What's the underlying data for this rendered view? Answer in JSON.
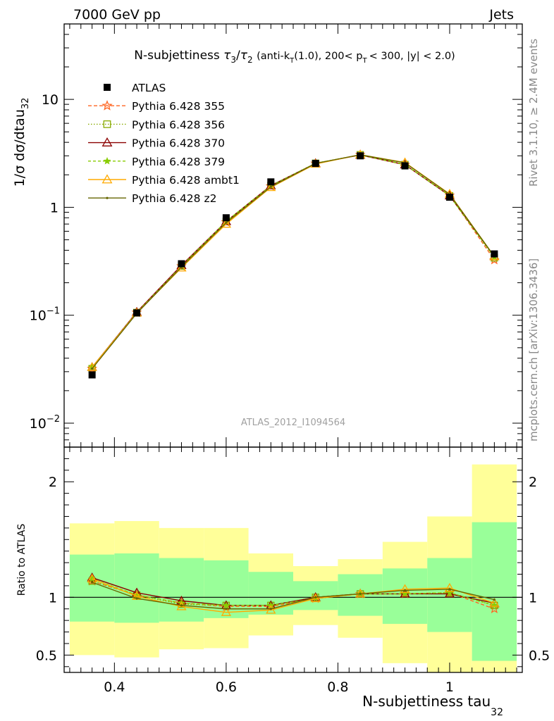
{
  "header": {
    "left": "7000 GeV pp",
    "right": "Jets"
  },
  "side_labels": {
    "rivet": "Rivet 3.1.10, ≥ 2.4M events",
    "mcplots": "mcplots.cern.ch [arXiv:1306.3436]"
  },
  "watermark": "ATLAS_2012_I1094564",
  "colors": {
    "band_outer": "#ffff99",
    "band_inner": "#99ff99",
    "data": "#000000"
  },
  "chart_data": [
    {
      "type": "line",
      "panel": "main",
      "title_parts": {
        "main": "N-subjettiness",
        "t3": "τ",
        "s3": "3",
        "slash": "/",
        "t2": "τ",
        "s2": "2",
        "open": "(anti-k",
        "kT_sub": "T",
        "mid": "(1.0), 200< p",
        "pT_sub": "T",
        "tail": "< 300, |y| < 2.0)"
      },
      "ylabel": "1/σ dσ/dtau",
      "ylabel_sub": "32",
      "y_scale": "log",
      "ylim": [
        0.006,
        50
      ],
      "xlim": [
        0.31,
        1.13
      ],
      "y_ticks": [
        {
          "value": 0.01,
          "base": "10",
          "exp": "−2"
        },
        {
          "value": 0.1,
          "base": "10",
          "exp": "−1"
        },
        {
          "value": 1,
          "base": "1",
          "exp": ""
        },
        {
          "value": 10,
          "base": "10",
          "exp": ""
        }
      ],
      "x": [
        0.36,
        0.44,
        0.52,
        0.6,
        0.68,
        0.76,
        0.84,
        0.92,
        1.0,
        1.08
      ],
      "data": {
        "name": "ATLAS",
        "values": [
          0.028,
          0.105,
          0.3,
          0.8,
          1.72,
          2.55,
          3.0,
          2.42,
          1.24,
          0.37
        ]
      },
      "series": [
        {
          "name": "Pythia 6.428 355",
          "color": "#ff6622",
          "dash": "5,3",
          "marker": "star_open",
          "values": [
            0.032,
            0.106,
            0.285,
            0.73,
            1.57,
            2.55,
            3.07,
            2.48,
            1.29,
            0.325
          ]
        },
        {
          "name": "Pythia 6.428 356",
          "color": "#88aa00",
          "dash": "1.5,2.5",
          "marker": "square_open",
          "values": [
            0.032,
            0.106,
            0.285,
            0.74,
            1.59,
            2.56,
            3.07,
            2.49,
            1.28,
            0.34
          ]
        },
        {
          "name": "Pythia 6.428 370",
          "color": "#8b0000",
          "dash": "",
          "marker": "triangle_open",
          "values": [
            0.033,
            0.107,
            0.29,
            0.74,
            1.59,
            2.55,
            3.05,
            2.48,
            1.28,
            0.35
          ]
        },
        {
          "name": "Pythia 6.428 379",
          "color": "#88cc00",
          "dash": "4,3",
          "marker": "star_filled",
          "values": [
            0.033,
            0.106,
            0.285,
            0.74,
            1.58,
            2.56,
            3.06,
            2.49,
            1.28,
            0.345
          ]
        },
        {
          "name": "Pythia 6.428 ambt1",
          "color": "#ffaa00",
          "dash": "",
          "marker": "triangle_open",
          "values": [
            0.033,
            0.105,
            0.275,
            0.7,
            1.53,
            2.52,
            3.07,
            2.6,
            1.33,
            0.35
          ]
        },
        {
          "name": "Pythia 6.428 z2",
          "color": "#666600",
          "dash": "",
          "marker": "dot",
          "values": [
            0.032,
            0.104,
            0.28,
            0.72,
            1.55,
            2.55,
            3.07,
            2.58,
            1.32,
            0.35
          ]
        }
      ]
    },
    {
      "type": "line",
      "panel": "ratio",
      "ylabel": "Ratio to ATLAS",
      "xlabel": "N-subjettiness tau",
      "xlabel_sub": "32",
      "ylim": [
        0.35,
        2.3
      ],
      "xlim": [
        0.31,
        1.13
      ],
      "y_ticks": [
        0.5,
        1,
        2
      ],
      "y_tick_labels": [
        "0.5",
        "1",
        "2"
      ],
      "x_ticks": [
        0.4,
        0.6,
        0.8,
        1.0
      ],
      "x_tick_labels": [
        "0.4",
        "0.6",
        "0.8",
        "1"
      ],
      "bins": [
        {
          "lo": 0.32,
          "hi": 0.4,
          "in_lo": 0.79,
          "in_hi": 1.37,
          "out_lo": 0.5,
          "out_hi": 1.64
        },
        {
          "lo": 0.4,
          "hi": 0.48,
          "in_lo": 0.78,
          "in_hi": 1.38,
          "out_lo": 0.48,
          "out_hi": 1.66
        },
        {
          "lo": 0.48,
          "hi": 0.56,
          "in_lo": 0.79,
          "in_hi": 1.34,
          "out_lo": 0.55,
          "out_hi": 1.6
        },
        {
          "lo": 0.56,
          "hi": 0.64,
          "in_lo": 0.82,
          "in_hi": 1.32,
          "out_lo": 0.56,
          "out_hi": 1.6
        },
        {
          "lo": 0.64,
          "hi": 0.72,
          "in_lo": 0.85,
          "in_hi": 1.22,
          "out_lo": 0.67,
          "out_hi": 1.38
        },
        {
          "lo": 0.72,
          "hi": 0.8,
          "in_lo": 0.89,
          "in_hi": 1.14,
          "out_lo": 0.76,
          "out_hi": 1.27
        },
        {
          "lo": 0.8,
          "hi": 0.88,
          "in_lo": 0.84,
          "in_hi": 1.2,
          "out_lo": 0.65,
          "out_hi": 1.33
        },
        {
          "lo": 0.88,
          "hi": 0.96,
          "in_lo": 0.77,
          "in_hi": 1.25,
          "out_lo": 0.43,
          "out_hi": 1.48
        },
        {
          "lo": 0.96,
          "hi": 1.04,
          "in_lo": 0.7,
          "in_hi": 1.34,
          "out_lo": 0.33,
          "out_hi": 1.7
        },
        {
          "lo": 1.04,
          "hi": 1.12,
          "in_lo": 0.45,
          "in_hi": 1.65,
          "out_lo": 0.33,
          "out_hi": 2.15
        }
      ],
      "series": [
        {
          "name": "Pythia 6.428 355",
          "values": [
            1.14,
            1.02,
            0.95,
            0.92,
            0.92,
            0.99,
            1.03,
            1.03,
            1.04,
            0.9
          ]
        },
        {
          "name": "Pythia 6.428 356",
          "values": [
            1.14,
            1.02,
            0.94,
            0.93,
            0.93,
            1.0,
            1.03,
            1.03,
            1.04,
            0.93
          ]
        },
        {
          "name": "Pythia 6.428 370",
          "values": [
            1.17,
            1.04,
            0.97,
            0.93,
            0.93,
            1.0,
            1.03,
            1.03,
            1.03,
            0.95
          ]
        },
        {
          "name": "Pythia 6.428 379",
          "values": [
            1.16,
            1.02,
            0.95,
            0.93,
            0.93,
            0.99,
            1.03,
            1.03,
            1.04,
            0.93
          ]
        },
        {
          "name": "Pythia 6.428 ambt1",
          "values": [
            1.16,
            1.01,
            0.92,
            0.87,
            0.89,
            0.99,
            1.03,
            1.07,
            1.08,
            0.95
          ]
        },
        {
          "name": "Pythia 6.428 z2",
          "values": [
            1.13,
            0.99,
            0.93,
            0.9,
            0.9,
            1.0,
            1.03,
            1.06,
            1.07,
            0.98
          ]
        }
      ]
    }
  ]
}
